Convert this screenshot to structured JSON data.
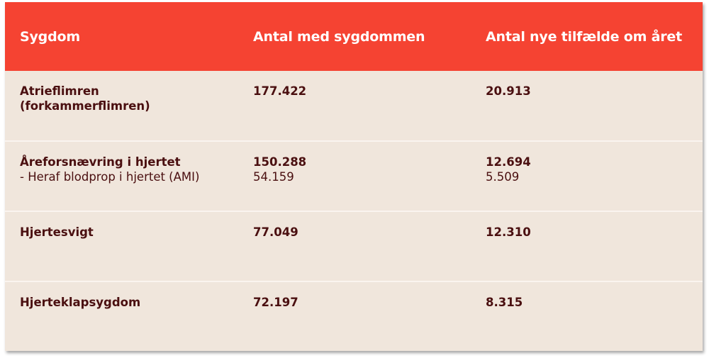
{
  "header": [
    "Sygdom",
    "Antal med sygdommen",
    "Antal nye tilfælde om året"
  ],
  "colors": {
    "header_bg": "#f54332",
    "body_bg": "#f0e6dc",
    "text": "#4a0f10"
  },
  "rows": [
    {
      "disease": [
        "Atrieflimren",
        "(forkammerflimren)"
      ],
      "count": "177.422",
      "new_per_year": "20.913"
    },
    {
      "disease": [
        "Åreforsnævring i hjertet"
      ],
      "sub": "- Heraf blodprop i hjertet (AMI)",
      "count": "150.288",
      "count_sub": "54.159",
      "new_per_year": "12.694",
      "new_per_year_sub": "5.509"
    },
    {
      "disease": [
        "Hjertesvigt"
      ],
      "count": "77.049",
      "new_per_year": "12.310"
    },
    {
      "disease": [
        "Hjerteklapsygdom"
      ],
      "count": "72.197",
      "new_per_year": "8.315"
    }
  ]
}
